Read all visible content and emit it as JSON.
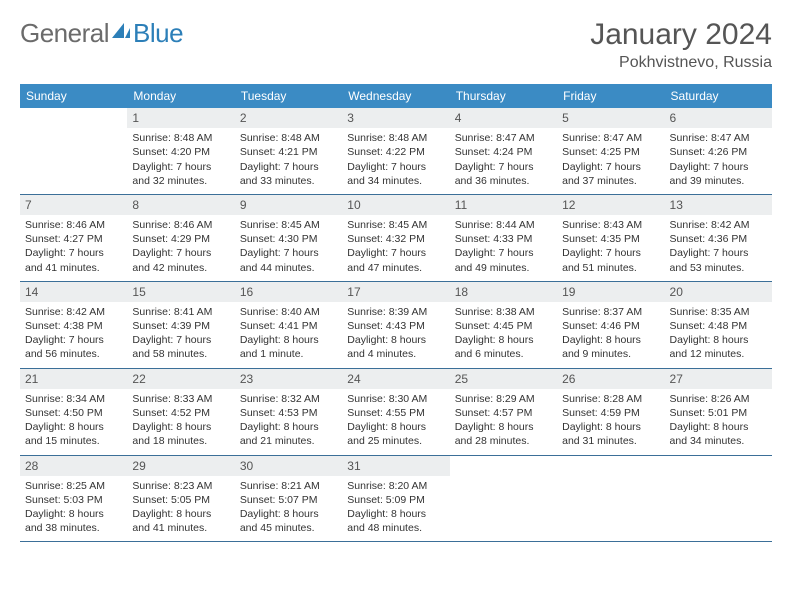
{
  "logo": {
    "part1": "General",
    "part2": "Blue"
  },
  "header": {
    "month": "January 2024",
    "location": "Pokhvistnevo, Russia"
  },
  "colors": {
    "header_bg": "#3b8bc4",
    "header_text": "#ffffff",
    "daynum_bg": "#eceeef",
    "border": "#3b6f98",
    "logo_gray": "#6b6b6b",
    "logo_blue": "#2c7fb8"
  },
  "dow": [
    "Sunday",
    "Monday",
    "Tuesday",
    "Wednesday",
    "Thursday",
    "Friday",
    "Saturday"
  ],
  "weeks": [
    [
      {
        "n": "",
        "sr": "",
        "ss": "",
        "dl": ""
      },
      {
        "n": "1",
        "sr": "Sunrise: 8:48 AM",
        "ss": "Sunset: 4:20 PM",
        "dl": "Daylight: 7 hours and 32 minutes."
      },
      {
        "n": "2",
        "sr": "Sunrise: 8:48 AM",
        "ss": "Sunset: 4:21 PM",
        "dl": "Daylight: 7 hours and 33 minutes."
      },
      {
        "n": "3",
        "sr": "Sunrise: 8:48 AM",
        "ss": "Sunset: 4:22 PM",
        "dl": "Daylight: 7 hours and 34 minutes."
      },
      {
        "n": "4",
        "sr": "Sunrise: 8:47 AM",
        "ss": "Sunset: 4:24 PM",
        "dl": "Daylight: 7 hours and 36 minutes."
      },
      {
        "n": "5",
        "sr": "Sunrise: 8:47 AM",
        "ss": "Sunset: 4:25 PM",
        "dl": "Daylight: 7 hours and 37 minutes."
      },
      {
        "n": "6",
        "sr": "Sunrise: 8:47 AM",
        "ss": "Sunset: 4:26 PM",
        "dl": "Daylight: 7 hours and 39 minutes."
      }
    ],
    [
      {
        "n": "7",
        "sr": "Sunrise: 8:46 AM",
        "ss": "Sunset: 4:27 PM",
        "dl": "Daylight: 7 hours and 41 minutes."
      },
      {
        "n": "8",
        "sr": "Sunrise: 8:46 AM",
        "ss": "Sunset: 4:29 PM",
        "dl": "Daylight: 7 hours and 42 minutes."
      },
      {
        "n": "9",
        "sr": "Sunrise: 8:45 AM",
        "ss": "Sunset: 4:30 PM",
        "dl": "Daylight: 7 hours and 44 minutes."
      },
      {
        "n": "10",
        "sr": "Sunrise: 8:45 AM",
        "ss": "Sunset: 4:32 PM",
        "dl": "Daylight: 7 hours and 47 minutes."
      },
      {
        "n": "11",
        "sr": "Sunrise: 8:44 AM",
        "ss": "Sunset: 4:33 PM",
        "dl": "Daylight: 7 hours and 49 minutes."
      },
      {
        "n": "12",
        "sr": "Sunrise: 8:43 AM",
        "ss": "Sunset: 4:35 PM",
        "dl": "Daylight: 7 hours and 51 minutes."
      },
      {
        "n": "13",
        "sr": "Sunrise: 8:42 AM",
        "ss": "Sunset: 4:36 PM",
        "dl": "Daylight: 7 hours and 53 minutes."
      }
    ],
    [
      {
        "n": "14",
        "sr": "Sunrise: 8:42 AM",
        "ss": "Sunset: 4:38 PM",
        "dl": "Daylight: 7 hours and 56 minutes."
      },
      {
        "n": "15",
        "sr": "Sunrise: 8:41 AM",
        "ss": "Sunset: 4:39 PM",
        "dl": "Daylight: 7 hours and 58 minutes."
      },
      {
        "n": "16",
        "sr": "Sunrise: 8:40 AM",
        "ss": "Sunset: 4:41 PM",
        "dl": "Daylight: 8 hours and 1 minute."
      },
      {
        "n": "17",
        "sr": "Sunrise: 8:39 AM",
        "ss": "Sunset: 4:43 PM",
        "dl": "Daylight: 8 hours and 4 minutes."
      },
      {
        "n": "18",
        "sr": "Sunrise: 8:38 AM",
        "ss": "Sunset: 4:45 PM",
        "dl": "Daylight: 8 hours and 6 minutes."
      },
      {
        "n": "19",
        "sr": "Sunrise: 8:37 AM",
        "ss": "Sunset: 4:46 PM",
        "dl": "Daylight: 8 hours and 9 minutes."
      },
      {
        "n": "20",
        "sr": "Sunrise: 8:35 AM",
        "ss": "Sunset: 4:48 PM",
        "dl": "Daylight: 8 hours and 12 minutes."
      }
    ],
    [
      {
        "n": "21",
        "sr": "Sunrise: 8:34 AM",
        "ss": "Sunset: 4:50 PM",
        "dl": "Daylight: 8 hours and 15 minutes."
      },
      {
        "n": "22",
        "sr": "Sunrise: 8:33 AM",
        "ss": "Sunset: 4:52 PM",
        "dl": "Daylight: 8 hours and 18 minutes."
      },
      {
        "n": "23",
        "sr": "Sunrise: 8:32 AM",
        "ss": "Sunset: 4:53 PM",
        "dl": "Daylight: 8 hours and 21 minutes."
      },
      {
        "n": "24",
        "sr": "Sunrise: 8:30 AM",
        "ss": "Sunset: 4:55 PM",
        "dl": "Daylight: 8 hours and 25 minutes."
      },
      {
        "n": "25",
        "sr": "Sunrise: 8:29 AM",
        "ss": "Sunset: 4:57 PM",
        "dl": "Daylight: 8 hours and 28 minutes."
      },
      {
        "n": "26",
        "sr": "Sunrise: 8:28 AM",
        "ss": "Sunset: 4:59 PM",
        "dl": "Daylight: 8 hours and 31 minutes."
      },
      {
        "n": "27",
        "sr": "Sunrise: 8:26 AM",
        "ss": "Sunset: 5:01 PM",
        "dl": "Daylight: 8 hours and 34 minutes."
      }
    ],
    [
      {
        "n": "28",
        "sr": "Sunrise: 8:25 AM",
        "ss": "Sunset: 5:03 PM",
        "dl": "Daylight: 8 hours and 38 minutes."
      },
      {
        "n": "29",
        "sr": "Sunrise: 8:23 AM",
        "ss": "Sunset: 5:05 PM",
        "dl": "Daylight: 8 hours and 41 minutes."
      },
      {
        "n": "30",
        "sr": "Sunrise: 8:21 AM",
        "ss": "Sunset: 5:07 PM",
        "dl": "Daylight: 8 hours and 45 minutes."
      },
      {
        "n": "31",
        "sr": "Sunrise: 8:20 AM",
        "ss": "Sunset: 5:09 PM",
        "dl": "Daylight: 8 hours and 48 minutes."
      },
      {
        "n": "",
        "sr": "",
        "ss": "",
        "dl": ""
      },
      {
        "n": "",
        "sr": "",
        "ss": "",
        "dl": ""
      },
      {
        "n": "",
        "sr": "",
        "ss": "",
        "dl": ""
      }
    ]
  ]
}
